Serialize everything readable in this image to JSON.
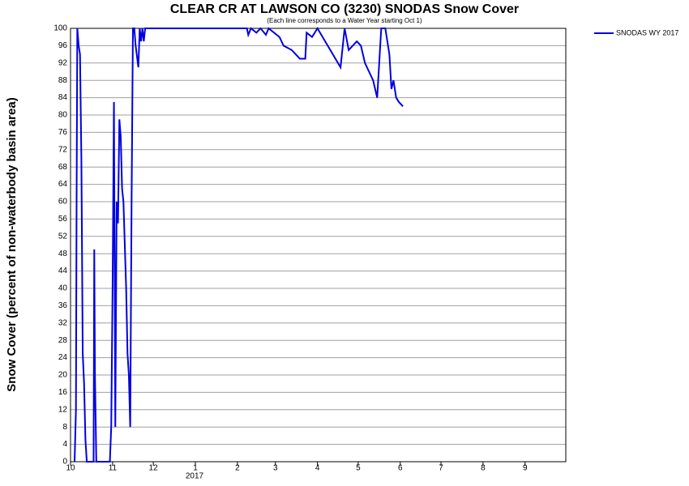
{
  "chart_data": {
    "type": "line",
    "title": "CLEAR CR AT LAWSON CO (3230) SNODAS Snow Cover",
    "subtitle": "(Each line corresponds to a Water Year starting Oct 1)",
    "y_label": "Snow Cover (percent of non-waterbody basin area)",
    "year_label": "2017",
    "xlim": [
      0,
      365
    ],
    "xticks": [
      {
        "value": 0,
        "label": "10"
      },
      {
        "value": 31,
        "label": "11"
      },
      {
        "value": 61,
        "label": "12"
      },
      {
        "value": 92,
        "label": "1"
      },
      {
        "value": 123,
        "label": "2"
      },
      {
        "value": 151,
        "label": "3"
      },
      {
        "value": 182,
        "label": "4"
      },
      {
        "value": 212,
        "label": "5"
      },
      {
        "value": 243,
        "label": "6"
      },
      {
        "value": 273,
        "label": "7"
      },
      {
        "value": 304,
        "label": "8"
      },
      {
        "value": 335,
        "label": "9"
      }
    ],
    "ylim": [
      0,
      100
    ],
    "yticks": [
      0,
      4,
      8,
      12,
      16,
      20,
      24,
      28,
      32,
      36,
      40,
      44,
      48,
      52,
      56,
      60,
      64,
      68,
      72,
      76,
      80,
      84,
      88,
      92,
      96,
      100
    ],
    "grid": true,
    "legend": "top-right",
    "x": [
      3,
      4,
      4.5,
      5,
      6,
      7,
      8,
      9,
      10,
      11,
      12,
      17,
      17.5,
      18,
      19,
      29,
      30,
      31,
      32,
      33,
      34,
      35,
      36,
      37,
      38,
      39,
      40,
      41,
      42,
      43,
      44,
      45,
      46,
      47,
      48,
      50,
      51,
      52,
      53,
      54,
      55,
      130,
      131,
      133,
      137,
      140,
      144,
      146,
      154,
      157,
      163,
      169,
      173,
      174,
      178,
      182,
      199,
      202,
      205,
      211,
      214,
      217,
      220,
      223,
      226,
      229,
      232,
      235,
      236.5,
      238,
      240,
      242,
      245
    ],
    "series": [
      {
        "name": "SNODAS WY 2017",
        "color": "#0000e0",
        "values": [
          0,
          12,
          62,
          100,
          96,
          94,
          70,
          25,
          18,
          5,
          0,
          0,
          49,
          20,
          0,
          0,
          8,
          40,
          83,
          8,
          60,
          55,
          79,
          75,
          63,
          60,
          50,
          40,
          25,
          20,
          8,
          60,
          100,
          100,
          96,
          91,
          100,
          97,
          100,
          97,
          100,
          100,
          98.5,
          100,
          99,
          100,
          98.5,
          100,
          98,
          96,
          95,
          93,
          93,
          99,
          98,
          100,
          91,
          100,
          95,
          97,
          96,
          92,
          90,
          88,
          84,
          100,
          100,
          94,
          86,
          88,
          84,
          83,
          82
        ]
      }
    ]
  }
}
